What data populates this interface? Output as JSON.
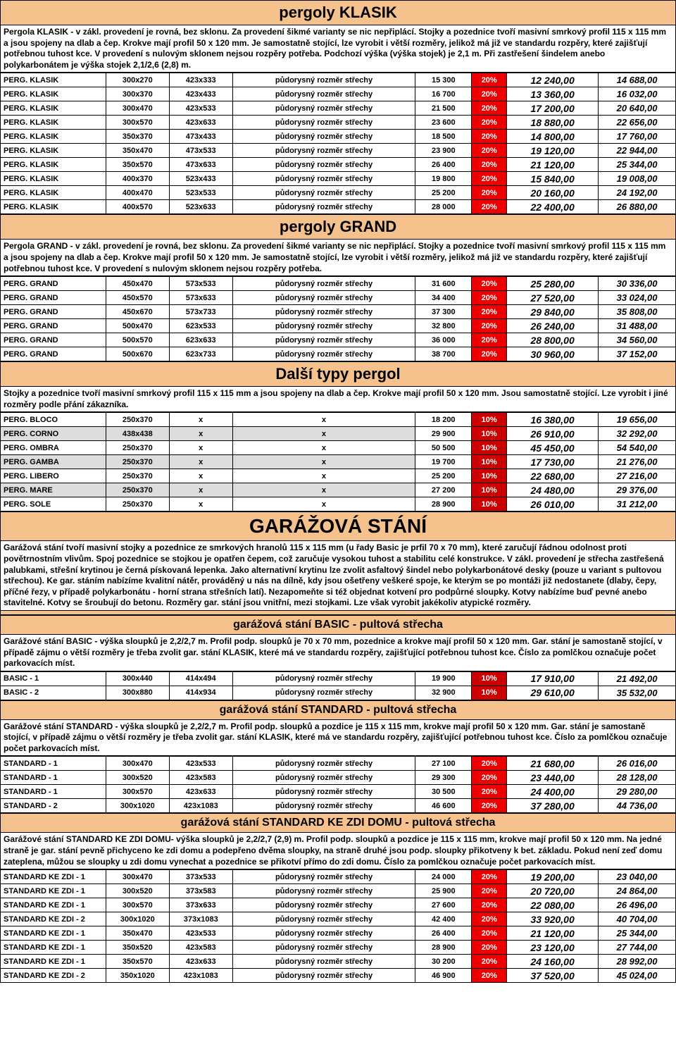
{
  "sections": [
    {
      "title": "pergoly KLASIK",
      "level": "h1",
      "desc": "Pergola KLASIK - v zákl. provedení je rovná, bez sklonu. Za provedení šikmé varianty se nic nepřiplácí. Stojky a pozednice tvoří masivní smrkový profil 115 x 115 mm a jsou spojeny na dlab a čep. Krokve mají profil 50 x 120 mm. Je samostatně stojící, lze vyrobit i větší rozměry, jelikož má již ve standardu rozpěry, které zajišťují potřebnou tuhost kce. V provedení s nulovým sklonem nejsou rozpěry potřeba. Podchozí výška (výška stojek) je 2,1 m. Při zastřešení šindelem anebo polykarbonátem je výška stojek 2,1/2,6 (2,8) m.",
      "pct": "20%",
      "rows": [
        [
          "PERG. KLASIK",
          "300x270",
          "423x333",
          "půdorysný rozměr střechy",
          "15 300",
          "12 240,00",
          "14 688,00"
        ],
        [
          "PERG. KLASIK",
          "300x370",
          "423x433",
          "půdorysný rozměr střechy",
          "16 700",
          "13 360,00",
          "16 032,00"
        ],
        [
          "PERG. KLASIK",
          "300x470",
          "423x533",
          "půdorysný rozměr střechy",
          "21 500",
          "17 200,00",
          "20 640,00"
        ],
        [
          "PERG. KLASIK",
          "300x570",
          "423x633",
          "půdorysný rozměr střechy",
          "23 600",
          "18 880,00",
          "22 656,00"
        ],
        [
          "PERG. KLASIK",
          "350x370",
          "473x433",
          "půdorysný rozměr střechy",
          "18 500",
          "14 800,00",
          "17 760,00"
        ],
        [
          "PERG. KLASIK",
          "350x470",
          "473x533",
          "půdorysný rozměr střechy",
          "23 900",
          "19 120,00",
          "22 944,00"
        ],
        [
          "PERG. KLASIK",
          "350x570",
          "473x633",
          "půdorysný rozměr střechy",
          "26 400",
          "21 120,00",
          "25 344,00"
        ],
        [
          "PERG. KLASIK",
          "400x370",
          "523x433",
          "půdorysný rozměr střechy",
          "19 800",
          "15 840,00",
          "19 008,00"
        ],
        [
          "PERG. KLASIK",
          "400x470",
          "523x533",
          "půdorysný rozměr střechy",
          "25 200",
          "20 160,00",
          "24 192,00"
        ],
        [
          "PERG. KLASIK",
          "400x570",
          "523x633",
          "půdorysný rozměr střechy",
          "28 000",
          "22 400,00",
          "26 880,00"
        ]
      ]
    },
    {
      "title": "pergoly GRAND",
      "level": "h1",
      "desc": "Pergola GRAND - v zákl. provedení je rovná, bez sklonu. Za provedení šikmé varianty se nic nepřiplácí. Stojky a pozednice tvoří masivní smrkový profil 115 x 115 mm a jsou spojeny na dlab a čep. Krokve mají profil 50 x 120 mm. Je samostatně stojící, lze vyrobit i větší rozměry, jelikož má již ve standardu rozpěry, které zajišťují potřebnou tuhost kce. V provedení s nulovým sklonem nejsou rozpěry potřeba.",
      "pct": "20%",
      "rows": [
        [
          "PERG. GRAND",
          "450x470",
          "573x533",
          "půdorysný rozměr střechy",
          "31 600",
          "25 280,00",
          "30 336,00"
        ],
        [
          "PERG. GRAND",
          "450x570",
          "573x633",
          "půdorysný rozměr střechy",
          "34 400",
          "27 520,00",
          "33 024,00"
        ],
        [
          "PERG. GRAND",
          "450x670",
          "573x733",
          "půdorysný rozměr střechy",
          "37 300",
          "29 840,00",
          "35 808,00"
        ],
        [
          "PERG. GRAND",
          "500x470",
          "623x533",
          "půdorysný rozměr střechy",
          "32 800",
          "26 240,00",
          "31 488,00"
        ],
        [
          "PERG. GRAND",
          "500x570",
          "623x633",
          "půdorysný rozměr střechy",
          "36 000",
          "28 800,00",
          "34 560,00"
        ],
        [
          "PERG. GRAND",
          "500x670",
          "623x733",
          "půdorysný rozměr střechy",
          "38 700",
          "30 960,00",
          "37 152,00"
        ]
      ]
    },
    {
      "title": "Další typy pergol",
      "level": "h1",
      "desc": "Stojky a pozednice tvoří masivní smrkový profil 115 x 115 mm a jsou spojeny na dlab a čep. Krokve mají profil 50 x 120 mm. Jsou samostatně stojící. Lze vyrobit i jiné rozměry podle přání zákazníka.",
      "pct": "10%",
      "alt": [
        1,
        3,
        5
      ],
      "rows": [
        [
          "PERG. BLOCO",
          "250x370",
          "x",
          "x",
          "18 200",
          "16 380,00",
          "19 656,00"
        ],
        [
          "PERG. CORNO",
          "438x438",
          "x",
          "x",
          "29 900",
          "26 910,00",
          "32 292,00"
        ],
        [
          "PERG. OMBRA",
          "250x370",
          "x",
          "x",
          "50 500",
          "45 450,00",
          "54 540,00"
        ],
        [
          "PERG. GAMBA",
          "250x370",
          "x",
          "x",
          "19 700",
          "17 730,00",
          "21 276,00"
        ],
        [
          "PERG. LIBERO",
          "250x370",
          "x",
          "x",
          "25 200",
          "22 680,00",
          "27 216,00"
        ],
        [
          "PERG. MARE",
          "250x370",
          "x",
          "x",
          "27 200",
          "24 480,00",
          "29 376,00"
        ],
        [
          "PERG. SOLE",
          "250x370",
          "x",
          "x",
          "28 900",
          "26 010,00",
          "31 212,00"
        ]
      ]
    },
    {
      "title": "GARÁŽOVÁ STÁNÍ",
      "level": "main-header",
      "desc": "Garážová stání tvoří masivní stojky a pozednice ze smrkových hranolů 115 x 115 mm (u řady Basic je prfil 70 x 70 mm), které zaručují řádnou odolnost proti povětrnostním vlivům. Spoj pozednice se stojkou je opatřen čepem, což zaručuje vysokou tuhost a stabilitu celé konstrukce. V zákl. provedení je střecha zastřešená palubkami, střešní krytinou je černá pískovaná lepenka. Jako alternativní krytinu lze zvolit asfaltový šindel nebo polykarbonátové desky (pouze u variant s pultovou střechou). Ke gar. stáním nabízíme kvalitní nátěr, prováděný u nás na dílně, kdy jsou ošetřeny veškeré spoje, ke kterým se po montáži již nedostanete (dlaby, čepy, příčné řezy, v případě polykarbonátu - horní strana střešních latí). Nezapomeňte si též objednat kotvení pro podpůrné sloupky. Kotvy nabízíme buď pevné anebo stavitelné. Kotvy se šroubují do betonu. Rozměry gar. stání jsou vnitřní, mezi stojkami. Lze však vyrobit jakékoliv atypické rozměry.",
      "spacer": true,
      "rows": []
    },
    {
      "title": "garážová stání BASIC - pultová střecha",
      "level": "h2",
      "desc": "Garážové stání BASIC - výška sloupků je 2,2/2,7 m. Profil podp. sloupků je 70 x 70 mm, pozednice a krokve mají profil 50 x 120 mm. Gar. stání je samostaně stojící, v případě zájmu o větší rozměry je třeba zvolit gar. stání KLASIK, které má ve standardu rozpěry, zajišťující potřebnou tuhost kce. Číslo za pomlčkou označuje počet parkovacích míst.",
      "pct": "10%",
      "rows": [
        [
          "BASIC - 1",
          "300x440",
          "414x494",
          "půdorysný rozměr střechy",
          "19 900",
          "17 910,00",
          "21 492,00"
        ],
        [
          "BASIC - 2",
          "300x880",
          "414x934",
          "půdorysný rozměr střechy",
          "32 900",
          "29 610,00",
          "35 532,00"
        ]
      ]
    },
    {
      "title": "garážová stání STANDARD - pultová střecha",
      "level": "h2",
      "desc": "Garážové stání STANDARD - výška sloupků je 2,2/2,7 m. Profil podp. sloupků a pozdice je 115 x 115 mm, krokve mají profil 50 x 120 mm. Gar. stání je samostaně stojící, v případě zájmu o větší rozměry je třeba zvolit gar. stání KLASIK, které má ve standardu rozpěry, zajišťující potřebnou tuhost kce. Číslo za pomlčkou označuje počet parkovacích míst.",
      "pct": "20%",
      "rows": [
        [
          "STANDARD - 1",
          "300x470",
          "423x533",
          "půdorysný rozměr střechy",
          "27 100",
          "21 680,00",
          "26 016,00"
        ],
        [
          "STANDARD - 1",
          "300x520",
          "423x583",
          "půdorysný rozměr střechy",
          "29 300",
          "23 440,00",
          "28 128,00"
        ],
        [
          "STANDARD - 1",
          "300x570",
          "423x633",
          "půdorysný rozměr střechy",
          "30 500",
          "24 400,00",
          "29 280,00"
        ],
        [
          "STANDARD - 2",
          "300x1020",
          "423x1083",
          "půdorysný rozměr střechy",
          "46 600",
          "37 280,00",
          "44 736,00"
        ]
      ]
    },
    {
      "title": "garážová stání STANDARD KE ZDI DOMU - pultová střecha",
      "level": "h2",
      "desc": "Garážové stání STANDARD KE ZDI DOMU- výška sloupků je 2,2/2,7 (2,9) m. Profil podp. sloupků a pozdice je 115 x 115 mm, krokve mají profil 50 x 120 mm. Na jedné straně je gar. stání pevně přichyceno ke zdi domu a podepřeno dvěma sloupky, na straně druhé jsou podp. sloupky přikotveny k bet. základu. Pokud není zeď domu zateplena, můžou se sloupky u zdi domu vynechat a pozednice se přikotví přímo do zdi domu. Číslo za pomlčkou označuje počet parkovacích míst.",
      "pct": "20%",
      "rows": [
        [
          "STANDARD KE ZDI - 1",
          "300x470",
          "373x533",
          "půdorysný rozměr střechy",
          "24 000",
          "19 200,00",
          "23 040,00"
        ],
        [
          "STANDARD KE ZDI - 1",
          "300x520",
          "373x583",
          "půdorysný rozměr střechy",
          "25 900",
          "20 720,00",
          "24 864,00"
        ],
        [
          "STANDARD KE ZDI - 1",
          "300x570",
          "373x633",
          "půdorysný rozměr střechy",
          "27 600",
          "22 080,00",
          "26 496,00"
        ],
        [
          "STANDARD KE ZDI - 2",
          "300x1020",
          "373x1083",
          "půdorysný rozměr střechy",
          "42 400",
          "33 920,00",
          "40 704,00"
        ],
        [
          "STANDARD KE ZDI - 1",
          "350x470",
          "423x533",
          "půdorysný rozměr střechy",
          "26 400",
          "21 120,00",
          "25 344,00"
        ],
        [
          "STANDARD KE ZDI - 1",
          "350x520",
          "423x583",
          "půdorysný rozměr střechy",
          "28 900",
          "23 120,00",
          "27 744,00"
        ],
        [
          "STANDARD KE ZDI - 1",
          "350x570",
          "423x633",
          "půdorysný rozměr střechy",
          "30 200",
          "24 160,00",
          "28 992,00"
        ],
        [
          "STANDARD KE ZDI - 2",
          "350x1020",
          "423x1083",
          "půdorysný rozměr střechy",
          "46 900",
          "37 520,00",
          "45 024,00"
        ]
      ]
    }
  ]
}
